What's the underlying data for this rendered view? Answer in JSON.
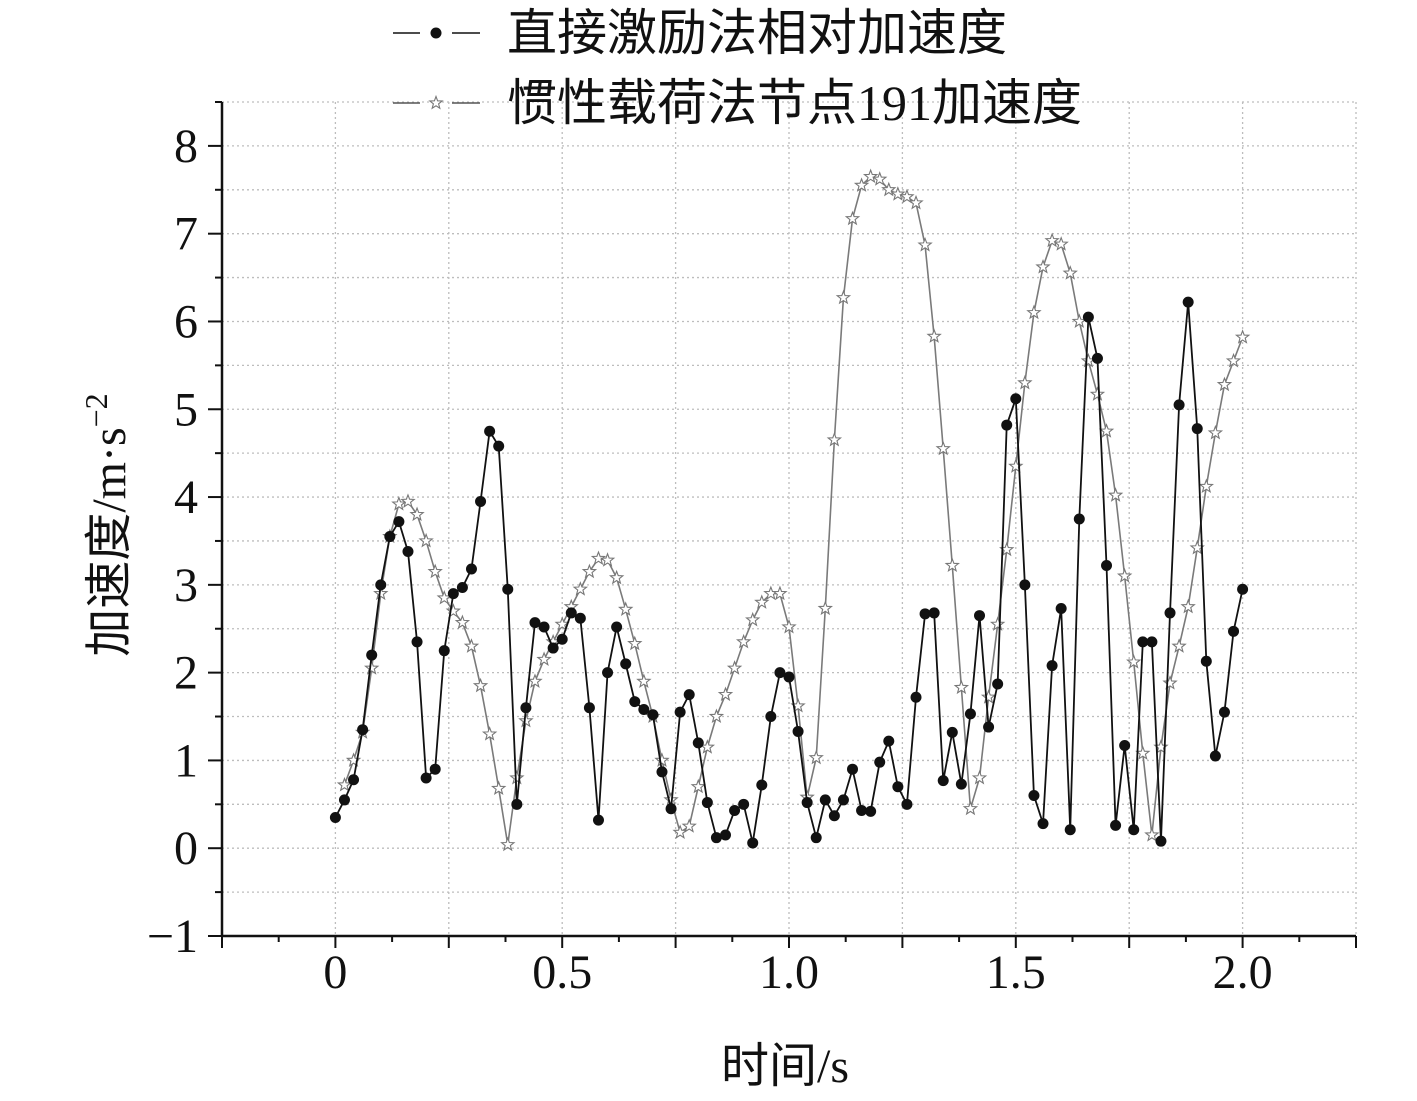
{
  "chart_data": {
    "type": "line",
    "xlabel": "时间/s",
    "ylabel": "加速度/m·s",
    "ylabel_sup": "−2",
    "xlim": [
      -0.25,
      2.25
    ],
    "ylim": [
      -1,
      8.5
    ],
    "xticks": [
      0,
      0.5,
      1.0,
      1.5,
      2.0
    ],
    "xtick_labels": [
      "0",
      "0.5",
      "1.0",
      "1.5",
      "2.0"
    ],
    "yticks": [
      -1,
      0,
      1,
      2,
      3,
      4,
      5,
      6,
      7,
      8
    ],
    "ytick_labels": [
      "−1",
      "0",
      "1",
      "2",
      "3",
      "4",
      "5",
      "6",
      "7",
      "8"
    ],
    "grid": true,
    "legend_position": "top",
    "series": [
      {
        "name": "直接激励法相对加速度",
        "marker": "circle",
        "color": "#111111",
        "x": [
          0,
          0.02,
          0.04,
          0.06,
          0.08,
          0.1,
          0.12,
          0.14,
          0.16,
          0.18,
          0.2,
          0.22,
          0.24,
          0.26,
          0.28,
          0.3,
          0.32,
          0.34,
          0.36,
          0.38,
          0.4,
          0.42,
          0.44,
          0.46,
          0.48,
          0.5,
          0.52,
          0.54,
          0.56,
          0.58,
          0.6,
          0.62,
          0.64,
          0.66,
          0.68,
          0.7,
          0.72,
          0.74,
          0.76,
          0.78,
          0.8,
          0.82,
          0.84,
          0.86,
          0.88,
          0.9,
          0.92,
          0.94,
          0.96,
          0.98,
          1.0,
          1.02,
          1.04,
          1.06,
          1.08,
          1.1,
          1.12,
          1.14,
          1.16,
          1.18,
          1.2,
          1.22,
          1.24,
          1.26,
          1.28,
          1.3,
          1.32,
          1.34,
          1.36,
          1.38,
          1.4,
          1.42,
          1.44,
          1.46,
          1.48,
          1.5,
          1.52,
          1.54,
          1.56,
          1.58,
          1.6,
          1.62,
          1.64,
          1.66,
          1.68,
          1.7,
          1.72,
          1.74,
          1.76,
          1.78,
          1.8,
          1.82,
          1.84,
          1.86,
          1.88,
          1.9,
          1.92,
          1.94,
          1.96,
          1.98,
          2.0
        ],
        "y": [
          0.35,
          0.55,
          0.78,
          1.35,
          2.2,
          3.0,
          3.55,
          3.72,
          3.38,
          2.35,
          0.8,
          0.9,
          2.25,
          2.9,
          2.97,
          3.18,
          3.95,
          4.75,
          4.58,
          2.95,
          0.5,
          1.6,
          2.57,
          2.52,
          2.28,
          2.38,
          2.68,
          2.62,
          1.6,
          0.32,
          2.0,
          2.52,
          2.1,
          1.67,
          1.58,
          1.52,
          0.87,
          0.45,
          1.55,
          1.75,
          1.2,
          0.52,
          0.12,
          0.15,
          0.43,
          0.5,
          0.06,
          0.72,
          1.5,
          2.0,
          1.95,
          1.33,
          0.52,
          0.12,
          0.55,
          0.37,
          0.55,
          0.9,
          0.43,
          0.42,
          0.98,
          1.22,
          0.7,
          0.5,
          1.72,
          2.67,
          2.68,
          0.77,
          1.32,
          0.73,
          1.53,
          2.65,
          1.38,
          1.87,
          4.82,
          5.12,
          3.0,
          0.6,
          0.28,
          2.08,
          2.73,
          0.21,
          3.75,
          6.05,
          5.58,
          3.22,
          0.26,
          1.17,
          0.21,
          2.35,
          2.35,
          0.08,
          2.68,
          5.05,
          6.22,
          4.78,
          2.13,
          1.05,
          1.55,
          2.47,
          2.95
        ]
      },
      {
        "name": "惯性载荷法节点191加速度",
        "marker": "star",
        "color": "#7a7a7a",
        "x": [
          0.02,
          0.04,
          0.06,
          0.08,
          0.1,
          0.12,
          0.14,
          0.16,
          0.18,
          0.2,
          0.22,
          0.24,
          0.26,
          0.28,
          0.3,
          0.32,
          0.34,
          0.36,
          0.38,
          0.4,
          0.42,
          0.44,
          0.46,
          0.48,
          0.5,
          0.52,
          0.54,
          0.56,
          0.58,
          0.6,
          0.62,
          0.64,
          0.66,
          0.68,
          0.7,
          0.72,
          0.74,
          0.76,
          0.78,
          0.8,
          0.82,
          0.84,
          0.86,
          0.88,
          0.9,
          0.92,
          0.94,
          0.96,
          0.98,
          1.0,
          1.02,
          1.04,
          1.06,
          1.08,
          1.1,
          1.12,
          1.14,
          1.16,
          1.18,
          1.2,
          1.22,
          1.24,
          1.26,
          1.28,
          1.3,
          1.32,
          1.34,
          1.36,
          1.38,
          1.4,
          1.42,
          1.44,
          1.46,
          1.48,
          1.5,
          1.52,
          1.54,
          1.56,
          1.58,
          1.6,
          1.62,
          1.64,
          1.66,
          1.68,
          1.7,
          1.72,
          1.74,
          1.76,
          1.78,
          1.8,
          1.82,
          1.84,
          1.86,
          1.88,
          1.9,
          1.92,
          1.94,
          1.96,
          1.98,
          2.0
        ],
        "y": [
          0.72,
          1.0,
          1.32,
          2.05,
          2.9,
          3.55,
          3.92,
          3.95,
          3.8,
          3.5,
          3.15,
          2.85,
          2.7,
          2.57,
          2.3,
          1.85,
          1.3,
          0.68,
          0.04,
          0.8,
          1.45,
          1.9,
          2.15,
          2.35,
          2.55,
          2.75,
          2.95,
          3.15,
          3.3,
          3.28,
          3.08,
          2.72,
          2.33,
          1.9,
          1.5,
          1.0,
          0.55,
          0.18,
          0.25,
          0.7,
          1.15,
          1.5,
          1.75,
          2.05,
          2.35,
          2.6,
          2.8,
          2.9,
          2.9,
          2.52,
          1.62,
          0.58,
          1.03,
          2.73,
          4.65,
          6.27,
          7.17,
          7.55,
          7.65,
          7.62,
          7.5,
          7.45,
          7.42,
          7.35,
          6.87,
          5.83,
          4.55,
          3.22,
          1.83,
          0.45,
          0.8,
          1.72,
          2.55,
          3.4,
          4.35,
          5.3,
          6.1,
          6.62,
          6.92,
          6.88,
          6.55,
          6.0,
          5.55,
          5.17,
          4.75,
          4.02,
          3.1,
          2.12,
          1.08,
          0.15,
          1.15,
          1.88,
          2.3,
          2.75,
          3.42,
          4.12,
          4.73,
          5.28,
          5.55,
          5.82
        ]
      }
    ]
  }
}
